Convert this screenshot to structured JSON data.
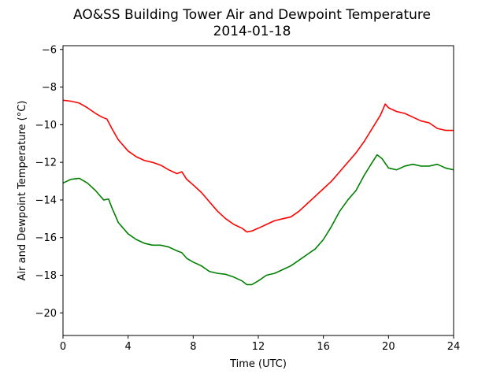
{
  "chart_data": {
    "type": "line",
    "title": "AO&SS Building Tower Air and Dewpoint Temperature",
    "subtitle": "2014-01-18",
    "xlabel": "Time (UTC)",
    "ylabel": "Air and Dewpoint Temperature (°C)",
    "xlim": [
      0,
      24
    ],
    "ylim": [
      -21.2,
      -5.8
    ],
    "xticks": [
      0,
      4,
      8,
      12,
      16,
      20,
      24
    ],
    "xtick_labels": [
      "0",
      "4",
      "8",
      "12",
      "16",
      "20",
      "24"
    ],
    "yticks": [
      -20,
      -18,
      -16,
      -14,
      -12,
      -10,
      -8,
      -6
    ],
    "ytick_labels": [
      "−20",
      "−18",
      "−16",
      "−14",
      "−12",
      "−10",
      "−8",
      "−6"
    ],
    "grid": false,
    "series": [
      {
        "color": "#ff0000",
        "x": [
          0,
          0.5,
          1,
          1.5,
          2,
          2.4,
          2.7,
          3,
          3.4,
          4,
          4.5,
          5,
          5.5,
          6,
          6.5,
          7,
          7.3,
          7.6,
          8,
          8.5,
          9,
          9.5,
          10,
          10.5,
          11,
          11.3,
          11.6,
          12,
          12.5,
          13,
          13.5,
          14,
          14.5,
          15,
          15.5,
          16,
          16.5,
          17,
          17.5,
          18,
          18.5,
          19,
          19.5,
          19.8,
          20,
          20.5,
          21,
          21.5,
          22,
          22.5,
          23,
          23.5,
          24
        ],
        "y": [
          -8.7,
          -8.75,
          -8.85,
          -9.1,
          -9.4,
          -9.6,
          -9.7,
          -10.2,
          -10.8,
          -11.4,
          -11.7,
          -11.9,
          -12.0,
          -12.15,
          -12.4,
          -12.6,
          -12.5,
          -12.9,
          -13.2,
          -13.6,
          -14.1,
          -14.6,
          -15.0,
          -15.3,
          -15.5,
          -15.7,
          -15.65,
          -15.5,
          -15.3,
          -15.1,
          -15.0,
          -14.9,
          -14.6,
          -14.2,
          -13.8,
          -13.4,
          -13.0,
          -12.5,
          -12.0,
          -11.5,
          -10.9,
          -10.2,
          -9.5,
          -8.9,
          -9.1,
          -9.3,
          -9.4,
          -9.6,
          -9.8,
          -9.9,
          -10.2,
          -10.3,
          -10.3
        ]
      },
      {
        "color": "#008000",
        "x": [
          0,
          0.5,
          1,
          1.5,
          2,
          2.5,
          2.8,
          3,
          3.4,
          4,
          4.5,
          5,
          5.5,
          6,
          6.5,
          7,
          7.3,
          7.6,
          8,
          8.5,
          9,
          9.5,
          10,
          10.5,
          11,
          11.3,
          11.6,
          12,
          12.5,
          13,
          13.5,
          14,
          14.5,
          15,
          15.5,
          16,
          16.5,
          17,
          17.5,
          18,
          18.5,
          19,
          19.3,
          19.6,
          20,
          20.5,
          21,
          21.5,
          22,
          22.5,
          23,
          23.5,
          24
        ],
        "y": [
          -13.1,
          -12.9,
          -12.85,
          -13.1,
          -13.5,
          -14.0,
          -13.95,
          -14.4,
          -15.2,
          -15.8,
          -16.1,
          -16.3,
          -16.4,
          -16.4,
          -16.5,
          -16.7,
          -16.8,
          -17.1,
          -17.3,
          -17.5,
          -17.8,
          -17.9,
          -17.95,
          -18.1,
          -18.3,
          -18.5,
          -18.5,
          -18.3,
          -18.0,
          -17.9,
          -17.7,
          -17.5,
          -17.2,
          -16.9,
          -16.6,
          -16.1,
          -15.4,
          -14.6,
          -14.0,
          -13.5,
          -12.7,
          -12.0,
          -11.6,
          -11.8,
          -12.3,
          -12.4,
          -12.2,
          -12.1,
          -12.2,
          -12.2,
          -12.1,
          -12.3,
          -12.4
        ]
      }
    ]
  }
}
